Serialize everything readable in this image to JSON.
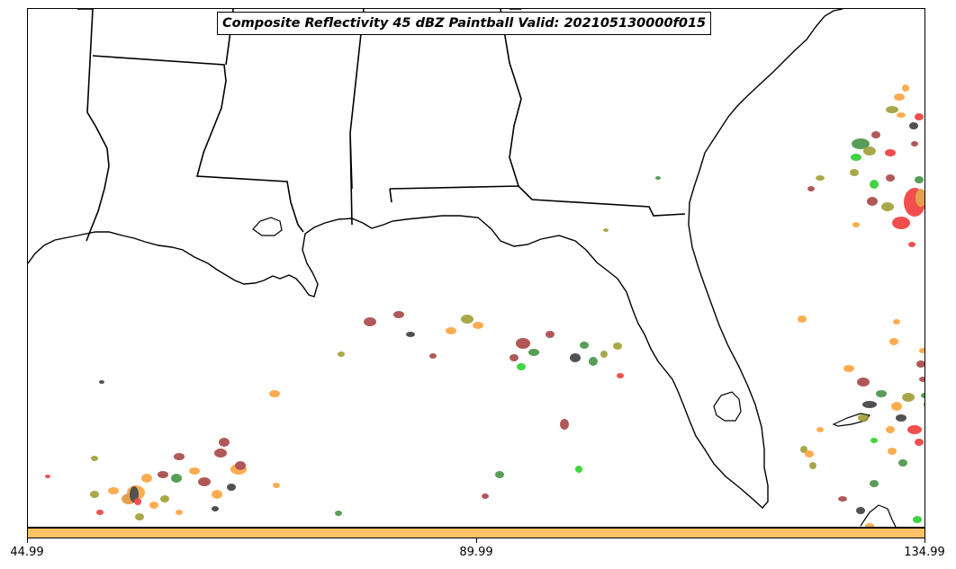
{
  "title": "Composite Reflectivity 45 dBZ Paintball Valid: 202105130000f015",
  "map": {
    "region": "Southeastern United States and Gulf of Mexico",
    "layers": [
      "coastlines",
      "state-borders",
      "reflectivity-paintball"
    ],
    "paintball_colors": [
      "#a33b3b",
      "#ff9e33",
      "#3c8c3c",
      "#f03030",
      "#9a9a2a",
      "#22cc22",
      "#333333",
      "#e09030"
    ]
  },
  "colorbar": {
    "color": "#ffc266",
    "tick_labels": [
      "44.99",
      "89.99",
      "134.99"
    ]
  }
}
